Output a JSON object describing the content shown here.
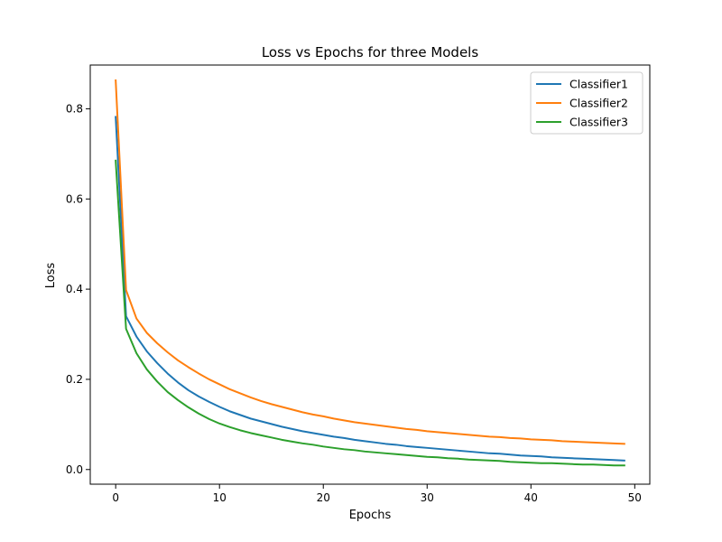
{
  "chart_data": {
    "type": "line",
    "title": "Loss vs Epochs for three Models",
    "xlabel": "Epochs",
    "ylabel": "Loss",
    "xlim": [
      -2.45,
      51.45
    ],
    "ylim": [
      -0.0325,
      0.897
    ],
    "grid": false,
    "legend_position": "top-right",
    "x_ticks": [
      0,
      10,
      20,
      30,
      40,
      50
    ],
    "y_ticks": [
      0.0,
      0.2,
      0.4,
      0.6,
      0.8
    ],
    "x": [
      0,
      1,
      2,
      3,
      4,
      5,
      6,
      7,
      8,
      9,
      10,
      11,
      12,
      13,
      14,
      15,
      16,
      17,
      18,
      19,
      20,
      21,
      22,
      23,
      24,
      25,
      26,
      27,
      28,
      29,
      30,
      31,
      32,
      33,
      34,
      35,
      36,
      37,
      38,
      39,
      40,
      41,
      42,
      43,
      44,
      45,
      46,
      47,
      48,
      49
    ],
    "series": [
      {
        "name": "Classifier1",
        "color": "#1f77b4",
        "values": [
          0.782,
          0.34,
          0.295,
          0.262,
          0.236,
          0.213,
          0.193,
          0.176,
          0.162,
          0.15,
          0.139,
          0.129,
          0.121,
          0.113,
          0.107,
          0.101,
          0.095,
          0.09,
          0.085,
          0.081,
          0.077,
          0.073,
          0.07,
          0.066,
          0.063,
          0.06,
          0.057,
          0.055,
          0.052,
          0.05,
          0.048,
          0.046,
          0.044,
          0.042,
          0.04,
          0.038,
          0.036,
          0.035,
          0.033,
          0.031,
          0.03,
          0.029,
          0.027,
          0.026,
          0.025,
          0.024,
          0.023,
          0.022,
          0.021,
          0.02
        ]
      },
      {
        "name": "Classifier2",
        "color": "#ff7f0e",
        "values": [
          0.863,
          0.398,
          0.335,
          0.303,
          0.28,
          0.26,
          0.242,
          0.227,
          0.213,
          0.2,
          0.189,
          0.178,
          0.169,
          0.16,
          0.152,
          0.145,
          0.139,
          0.133,
          0.127,
          0.122,
          0.118,
          0.113,
          0.109,
          0.105,
          0.102,
          0.099,
          0.096,
          0.093,
          0.09,
          0.088,
          0.085,
          0.083,
          0.081,
          0.079,
          0.077,
          0.075,
          0.073,
          0.072,
          0.07,
          0.069,
          0.067,
          0.066,
          0.065,
          0.063,
          0.062,
          0.061,
          0.06,
          0.059,
          0.058,
          0.057
        ]
      },
      {
        "name": "Classifier3",
        "color": "#2ca02c",
        "values": [
          0.685,
          0.312,
          0.258,
          0.222,
          0.195,
          0.172,
          0.154,
          0.138,
          0.124,
          0.112,
          0.102,
          0.094,
          0.087,
          0.081,
          0.076,
          0.071,
          0.066,
          0.062,
          0.058,
          0.055,
          0.051,
          0.048,
          0.045,
          0.043,
          0.04,
          0.038,
          0.036,
          0.034,
          0.032,
          0.03,
          0.028,
          0.027,
          0.025,
          0.024,
          0.022,
          0.021,
          0.02,
          0.019,
          0.017,
          0.016,
          0.015,
          0.014,
          0.014,
          0.013,
          0.012,
          0.011,
          0.011,
          0.01,
          0.009,
          0.009
        ]
      }
    ]
  }
}
